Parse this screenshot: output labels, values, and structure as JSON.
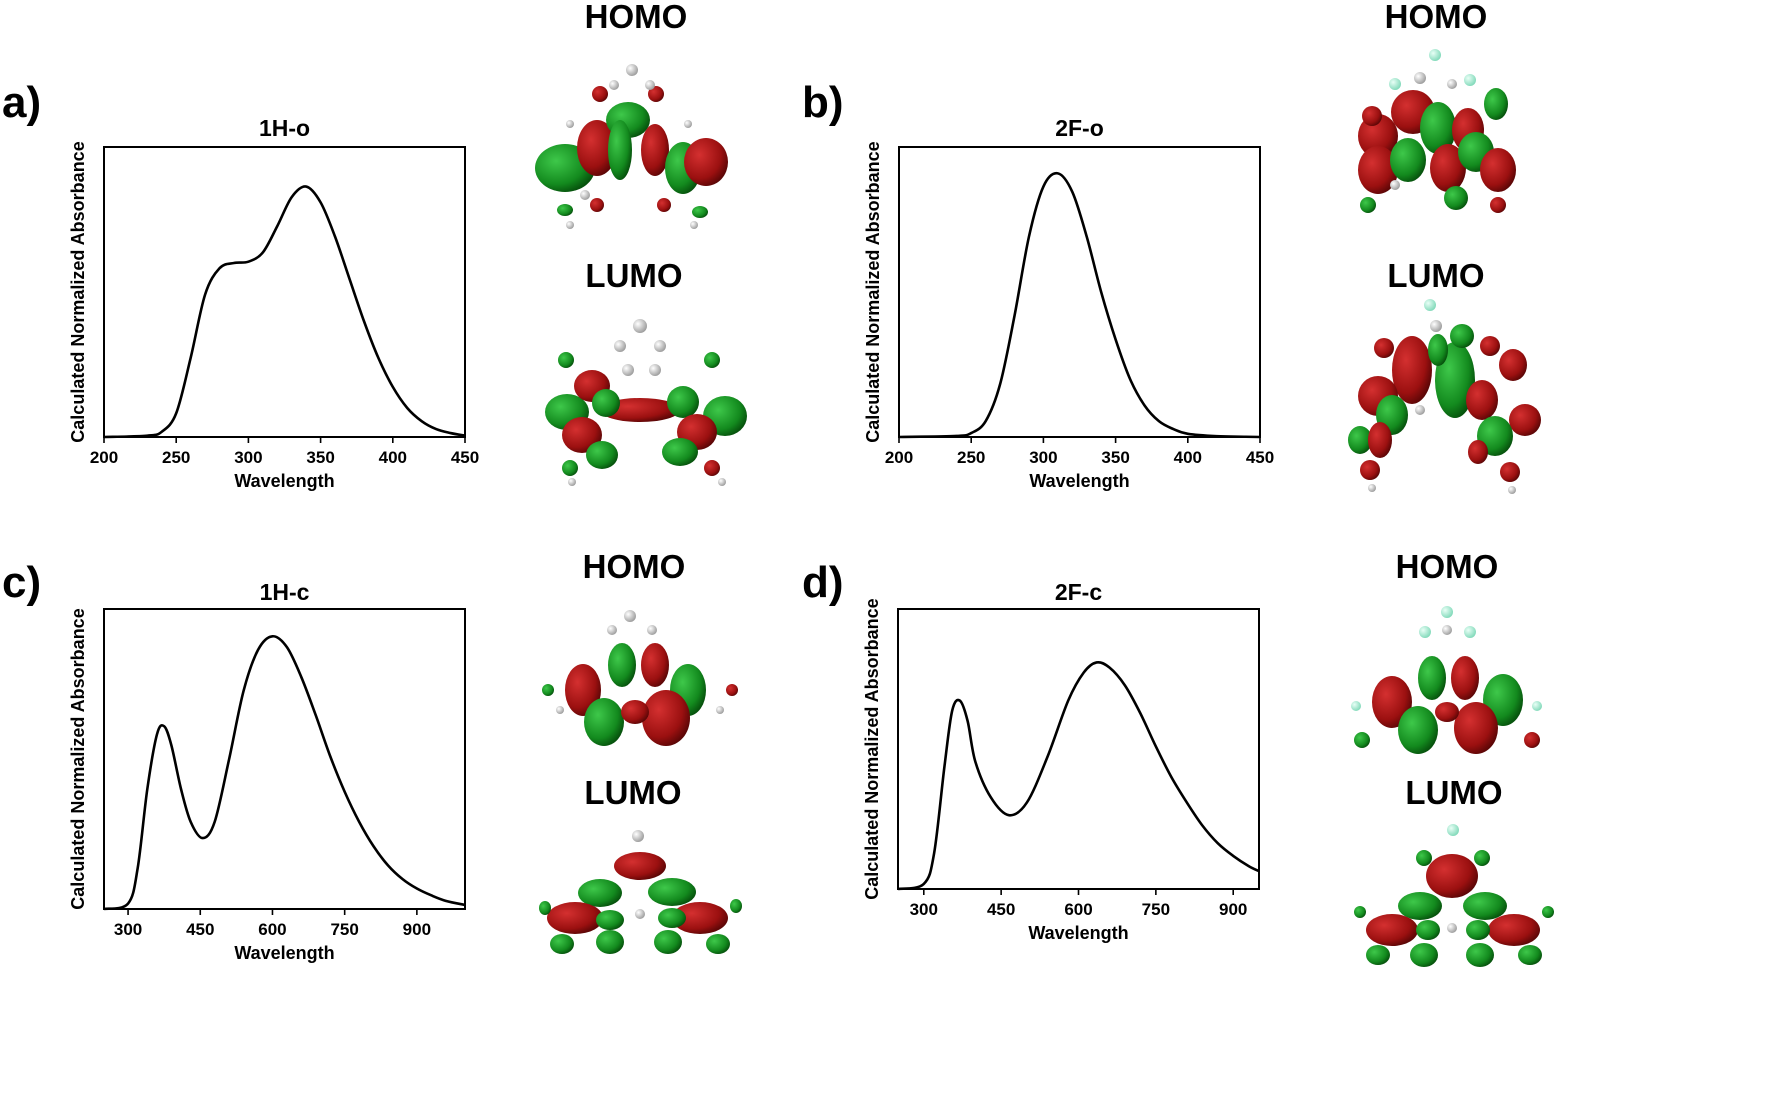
{
  "orbital_labels": {
    "homo": "HOMO",
    "lumo": "LUMO"
  },
  "orbital_colors": {
    "positive": "#9b1010",
    "negative": "#138a1e",
    "carbon": "#9a9a9a",
    "hydrogen": "#f2f2f2",
    "oxygen": "#e00000",
    "fluorine": "#a8f0d8"
  },
  "chart_data": [
    {
      "panel": "a)",
      "type": "line",
      "title": "1H-o",
      "xlabel": "Wavelength",
      "ylabel": "Calculated Normalized Absorbance",
      "xlim": [
        200,
        450
      ],
      "ylim": [
        0,
        1.1
      ],
      "xticks": [
        200,
        250,
        300,
        350,
        400,
        450
      ],
      "grid": false,
      "series": [
        {
          "x": [
            200,
            230,
            240,
            250,
            260,
            270,
            280,
            290,
            300,
            310,
            320,
            330,
            340,
            350,
            360,
            370,
            380,
            390,
            400,
            410,
            420,
            430,
            440,
            450
          ],
          "y": [
            0,
            0.005,
            0.02,
            0.09,
            0.3,
            0.54,
            0.64,
            0.66,
            0.665,
            0.7,
            0.8,
            0.91,
            0.95,
            0.89,
            0.76,
            0.6,
            0.44,
            0.3,
            0.19,
            0.11,
            0.06,
            0.03,
            0.015,
            0.005
          ]
        }
      ]
    },
    {
      "panel": "b)",
      "type": "line",
      "title": "2F-o",
      "xlabel": "Wavelength",
      "ylabel": "Calculated Normalized Absorbance",
      "xlim": [
        200,
        450
      ],
      "ylim": [
        0,
        1.1
      ],
      "xticks": [
        200,
        250,
        300,
        350,
        400,
        450
      ],
      "grid": false,
      "series": [
        {
          "x": [
            200,
            240,
            250,
            260,
            270,
            280,
            290,
            300,
            310,
            320,
            330,
            340,
            350,
            360,
            370,
            380,
            390,
            400,
            420,
            440,
            450
          ],
          "y": [
            0,
            0.004,
            0.015,
            0.06,
            0.2,
            0.46,
            0.76,
            0.95,
            1.0,
            0.93,
            0.76,
            0.55,
            0.37,
            0.22,
            0.12,
            0.06,
            0.03,
            0.012,
            0.003,
            0.001,
            0
          ]
        }
      ]
    },
    {
      "panel": "c)",
      "type": "line",
      "title": "1H-c",
      "xlabel": "Wavelength",
      "ylabel": "Calculated Normalized Absorbance",
      "xlim": [
        250,
        1000
      ],
      "ylim": [
        0,
        1.1
      ],
      "xticks": [
        300,
        450,
        600,
        750,
        900
      ],
      "grid": false,
      "series": [
        {
          "x": [
            250,
            300,
            320,
            340,
            360,
            375,
            390,
            410,
            430,
            455,
            480,
            510,
            540,
            570,
            600,
            630,
            660,
            690,
            720,
            750,
            780,
            810,
            840,
            870,
            900,
            930,
            960,
            1000
          ],
          "y": [
            0,
            0.02,
            0.15,
            0.44,
            0.64,
            0.67,
            0.6,
            0.44,
            0.32,
            0.26,
            0.32,
            0.55,
            0.8,
            0.95,
            1.0,
            0.96,
            0.85,
            0.71,
            0.56,
            0.43,
            0.32,
            0.23,
            0.16,
            0.11,
            0.075,
            0.05,
            0.03,
            0.015
          ]
        }
      ]
    },
    {
      "panel": "d)",
      "type": "line",
      "title": "2F-c",
      "xlabel": "Wavelength",
      "ylabel": "Calculated Normalized Absorbance",
      "xlim": [
        250,
        950
      ],
      "ylim": [
        0,
        1.1
      ],
      "xticks": [
        300,
        450,
        600,
        750,
        900
      ],
      "grid": false,
      "series": [
        {
          "x": [
            250,
            300,
            320,
            340,
            355,
            370,
            385,
            400,
            430,
            465,
            500,
            540,
            580,
            610,
            635,
            660,
            690,
            720,
            750,
            780,
            810,
            840,
            870,
            900,
            930,
            950
          ],
          "y": [
            0,
            0.02,
            0.14,
            0.48,
            0.7,
            0.74,
            0.66,
            0.5,
            0.36,
            0.29,
            0.34,
            0.52,
            0.74,
            0.85,
            0.89,
            0.87,
            0.8,
            0.69,
            0.56,
            0.44,
            0.34,
            0.25,
            0.18,
            0.13,
            0.09,
            0.07
          ]
        }
      ]
    }
  ]
}
